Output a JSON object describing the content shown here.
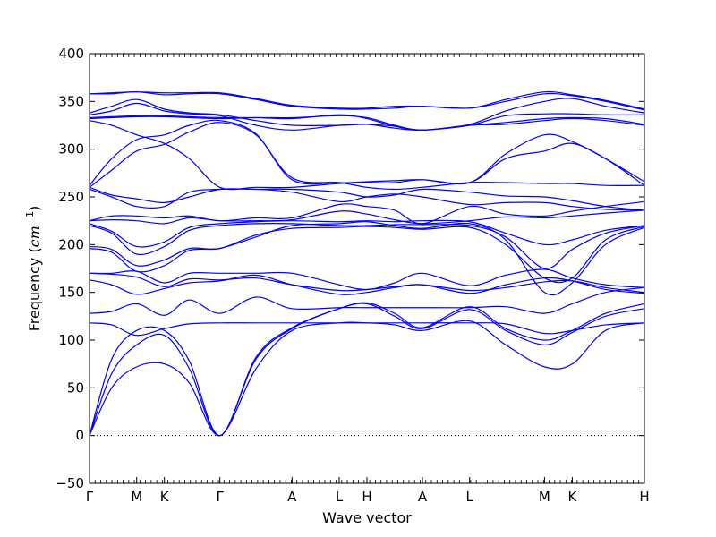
{
  "chart_data": {
    "type": "line",
    "title": "",
    "xlabel": "Wave vector",
    "ylabel_text": "Frequency (",
    "ylabel_unit_base": "cm",
    "ylabel_unit_exp": "−1",
    "ylabel_close": ")",
    "ylim": [
      -50,
      400
    ],
    "yticks": [
      -50,
      0,
      50,
      100,
      150,
      200,
      250,
      300,
      350,
      400
    ],
    "ytick_labels": [
      "−50",
      "0",
      "50",
      "100",
      "150",
      "200",
      "250",
      "300",
      "350",
      "400"
    ],
    "xlim": [
      0,
      100
    ],
    "xticks": [
      {
        "x": 0,
        "label": "Γ"
      },
      {
        "x": 8.5,
        "label": "M"
      },
      {
        "x": 13.5,
        "label": "K"
      },
      {
        "x": 23.5,
        "label": "Γ"
      },
      {
        "x": 36.5,
        "label": "A"
      },
      {
        "x": 45.0,
        "label": "L"
      },
      {
        "x": 50.0,
        "label": "H"
      },
      {
        "x": 60.0,
        "label": "A"
      },
      {
        "x": 68.5,
        "label": "L"
      },
      {
        "x": 82.0,
        "label": "M"
      },
      {
        "x": 87.0,
        "label": "K"
      },
      {
        "x": 100.0,
        "label": "H"
      }
    ],
    "grid": false,
    "zero_line": true,
    "line_color": "#0000ff",
    "series": [
      {
        "x": [
          0,
          4,
          8.5,
          13.5,
          18,
          23.5,
          30,
          36.5,
          45,
          50,
          55,
          60,
          68.5,
          75,
          82,
          87,
          93,
          100
        ],
        "values": [
          0,
          50,
          72,
          75,
          55,
          0,
          70,
          110,
          118,
          118,
          116,
          110,
          120,
          95,
          72,
          75,
          110,
          118
        ]
      },
      {
        "x": [
          0,
          4,
          8.5,
          13.5,
          18,
          23.5,
          30,
          36.5,
          45,
          50,
          55,
          60,
          68.5,
          75,
          82,
          87,
          93,
          100
        ],
        "values": [
          0,
          65,
          95,
          105,
          70,
          0,
          80,
          112,
          133,
          138,
          125,
          112,
          132,
          110,
          95,
          108,
          125,
          133
        ]
      },
      {
        "x": [
          0,
          4,
          8.5,
          13.5,
          18,
          23.5,
          30,
          36.5,
          45,
          50,
          55,
          60,
          68.5,
          75,
          82,
          87,
          93,
          100
        ],
        "values": [
          0,
          80,
          110,
          110,
          78,
          0,
          82,
          113,
          133,
          139,
          128,
          113,
          135,
          112,
          100,
          110,
          128,
          138
        ]
      },
      {
        "x": [
          0,
          4,
          8.5,
          13.5,
          18,
          23.5,
          30,
          36.5,
          45,
          50,
          55,
          60,
          68.5,
          75,
          82,
          87,
          93,
          100
        ],
        "values": [
          118,
          116,
          105,
          112,
          117,
          118,
          118,
          118,
          118,
          118,
          118,
          118,
          118,
          117,
          107,
          110,
          116,
          118
        ]
      },
      {
        "x": [
          0,
          4,
          8.5,
          13.5,
          18,
          23.5,
          30,
          36.5,
          45,
          50,
          55,
          60,
          68.5,
          75,
          82,
          87,
          93,
          100
        ],
        "values": [
          128,
          130,
          138,
          126,
          142,
          128,
          145,
          133,
          134,
          134,
          134,
          134,
          134,
          135,
          128,
          138,
          150,
          155
        ]
      },
      {
        "x": [
          0,
          4,
          8.5,
          13.5,
          18,
          23.5,
          30,
          36.5,
          45,
          50,
          55,
          60,
          68.5,
          75,
          82,
          87,
          93,
          100
        ],
        "values": [
          163,
          158,
          148,
          154,
          160,
          162,
          168,
          158,
          148,
          150,
          155,
          158,
          149,
          158,
          165,
          162,
          153,
          149
        ]
      },
      {
        "x": [
          0,
          4,
          8.5,
          13.5,
          18,
          23.5,
          30,
          36.5,
          45,
          50,
          55,
          60,
          68.5,
          75,
          82,
          87,
          93,
          100
        ],
        "values": [
          170,
          169,
          166,
          156,
          164,
          163,
          165,
          158,
          152,
          153,
          156,
          158,
          152,
          155,
          161,
          162,
          155,
          150
        ]
      },
      {
        "x": [
          0,
          4,
          8.5,
          13.5,
          18,
          23.5,
          30,
          36.5,
          45,
          50,
          55,
          60,
          68.5,
          75,
          82,
          87,
          93,
          100
        ],
        "values": [
          170,
          170,
          172,
          160,
          170,
          170,
          170,
          170,
          158,
          153,
          160,
          170,
          157,
          168,
          174,
          165,
          158,
          155
        ]
      },
      {
        "x": [
          0,
          4,
          8.5,
          13.5,
          18,
          23.5,
          30,
          36.5,
          45,
          50,
          55,
          60,
          68.5,
          75,
          82,
          87,
          93,
          100
        ],
        "values": [
          196,
          192,
          172,
          178,
          194,
          196,
          208,
          220,
          222,
          224,
          220,
          217,
          222,
          205,
          150,
          160,
          200,
          218
        ]
      },
      {
        "x": [
          0,
          4,
          8.5,
          13.5,
          18,
          23.5,
          30,
          36.5,
          45,
          50,
          55,
          60,
          68.5,
          75,
          82,
          87,
          93,
          100
        ],
        "values": [
          198,
          195,
          178,
          184,
          196,
          196,
          210,
          217,
          218,
          219,
          218,
          216,
          218,
          200,
          165,
          165,
          205,
          219
        ]
      },
      {
        "x": [
          0,
          4,
          8.5,
          13.5,
          18,
          23.5,
          30,
          36.5,
          45,
          50,
          55,
          60,
          68.5,
          75,
          82,
          87,
          93,
          100
        ],
        "values": [
          220,
          212,
          190,
          198,
          215,
          220,
          222,
          222,
          220,
          220,
          221,
          221,
          220,
          208,
          175,
          195,
          212,
          220
        ]
      },
      {
        "x": [
          0,
          4,
          8.5,
          13.5,
          18,
          23.5,
          30,
          36.5,
          45,
          50,
          55,
          60,
          68.5,
          75,
          82,
          87,
          93,
          100
        ],
        "values": [
          222,
          214,
          198,
          203,
          218,
          222,
          224,
          225,
          224,
          225,
          224,
          225,
          224,
          212,
          200,
          205,
          215,
          220
        ]
      },
      {
        "x": [
          0,
          4,
          8.5,
          13.5,
          18,
          23.5,
          30,
          36.5,
          45,
          50,
          55,
          60,
          68.5,
          75,
          82,
          87,
          93,
          100
        ],
        "values": [
          225,
          226,
          225,
          222,
          228,
          225,
          225,
          226,
          235,
          232,
          226,
          222,
          225,
          229,
          228,
          230,
          233,
          236
        ]
      },
      {
        "x": [
          0,
          4,
          8.5,
          13.5,
          18,
          23.5,
          30,
          36.5,
          45,
          50,
          55,
          60,
          68.5,
          75,
          82,
          87,
          93,
          100
        ],
        "values": [
          225,
          230,
          230,
          228,
          230,
          225,
          228,
          228,
          242,
          240,
          236,
          222,
          240,
          232,
          230,
          235,
          240,
          245
        ]
      },
      {
        "x": [
          0,
          4,
          8.5,
          13.5,
          18,
          23.5,
          30,
          36.5,
          45,
          50,
          55,
          60,
          68.5,
          75,
          82,
          87,
          93,
          100
        ],
        "values": [
          258,
          250,
          240,
          240,
          255,
          258,
          258,
          255,
          245,
          250,
          253,
          250,
          242,
          244,
          244,
          240,
          237,
          236
        ]
      },
      {
        "x": [
          0,
          4,
          8.5,
          13.5,
          18,
          23.5,
          30,
          36.5,
          45,
          50,
          55,
          60,
          68.5,
          75,
          82,
          87,
          93,
          100
        ],
        "values": [
          260,
          252,
          248,
          244,
          250,
          258,
          258,
          258,
          255,
          250,
          252,
          258,
          255,
          251,
          250,
          246,
          240,
          236
        ]
      },
      {
        "x": [
          0,
          4,
          8.5,
          13.5,
          18,
          23.5,
          30,
          36.5,
          45,
          50,
          55,
          60,
          68.5,
          75,
          82,
          87,
          93,
          100
        ],
        "values": [
          260,
          278,
          298,
          305,
          318,
          328,
          315,
          270,
          265,
          260,
          258,
          260,
          265,
          265,
          264,
          264,
          262,
          262
        ]
      },
      {
        "x": [
          0,
          4,
          8.5,
          13.5,
          18,
          23.5,
          30,
          36.5,
          45,
          50,
          55,
          60,
          68.5,
          75,
          82,
          87,
          93,
          100
        ],
        "values": [
          262,
          290,
          310,
          315,
          325,
          330,
          316,
          268,
          265,
          266,
          267,
          268,
          265,
          295,
          315,
          308,
          290,
          266
        ]
      },
      {
        "x": [
          0,
          4,
          8.5,
          13.5,
          18,
          23.5,
          30,
          36.5,
          45,
          50,
          55,
          60,
          68.5,
          75,
          82,
          87,
          93,
          100
        ],
        "values": [
          330,
          325,
          315,
          306,
          290,
          260,
          260,
          260,
          264,
          265,
          265,
          268,
          265,
          290,
          298,
          306,
          290,
          262
        ]
      },
      {
        "x": [
          0,
          4,
          8.5,
          13.5,
          18,
          23.5,
          30,
          36.5,
          45,
          50,
          55,
          60,
          68.5,
          75,
          82,
          87,
          93,
          100
        ],
        "values": [
          332,
          333,
          334,
          334,
          333,
          332,
          333,
          333,
          335,
          333,
          325,
          320,
          325,
          326,
          330,
          332,
          330,
          325
        ]
      },
      {
        "x": [
          0,
          4,
          8.5,
          13.5,
          18,
          23.5,
          30,
          36.5,
          45,
          50,
          55,
          60,
          68.5,
          75,
          82,
          87,
          93,
          100
        ],
        "values": [
          333,
          334,
          335,
          335,
          334,
          333,
          333,
          332,
          336,
          332,
          324,
          320,
          325,
          328,
          332,
          333,
          332,
          326
        ]
      },
      {
        "x": [
          0,
          4,
          8.5,
          13.5,
          18,
          23.5,
          30,
          36.5,
          45,
          50,
          55,
          60,
          68.5,
          75,
          82,
          87,
          93,
          100
        ],
        "values": [
          336,
          340,
          348,
          340,
          337,
          335,
          325,
          320,
          325,
          326,
          322,
          320,
          325,
          335,
          337,
          337,
          336,
          336
        ]
      },
      {
        "x": [
          0,
          4,
          8.5,
          13.5,
          18,
          23.5,
          30,
          36.5,
          45,
          50,
          55,
          60,
          68.5,
          75,
          82,
          87,
          93,
          100
        ],
        "values": [
          338,
          345,
          352,
          342,
          338,
          336,
          330,
          325,
          325,
          326,
          324,
          320,
          326,
          340,
          350,
          353,
          345,
          338
        ]
      },
      {
        "x": [
          0,
          4,
          8.5,
          13.5,
          18,
          23.5,
          30,
          36.5,
          45,
          50,
          55,
          60,
          68.5,
          75,
          82,
          87,
          93,
          100
        ],
        "values": [
          358,
          358,
          360,
          357,
          358,
          358,
          352,
          345,
          342,
          342,
          343,
          345,
          343,
          350,
          358,
          356,
          350,
          341
        ]
      },
      {
        "x": [
          0,
          4,
          8.5,
          13.5,
          18,
          23.5,
          30,
          36.5,
          45,
          50,
          55,
          60,
          68.5,
          75,
          82,
          87,
          93,
          100
        ],
        "values": [
          358,
          359,
          360,
          359,
          359,
          359,
          353,
          346,
          343,
          343,
          345,
          345,
          343,
          352,
          360,
          357,
          351,
          342
        ]
      }
    ]
  }
}
